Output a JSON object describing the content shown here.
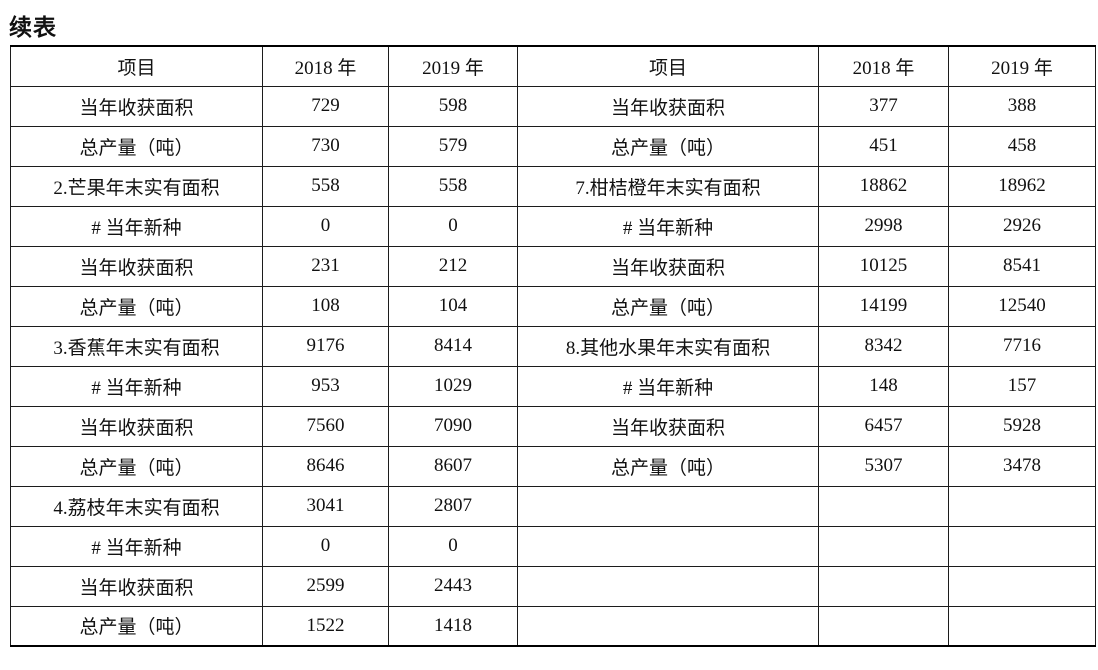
{
  "page": {
    "title": "续表",
    "background": "#ffffff",
    "text_color": "#111111",
    "border_color": "#1c1c1c"
  },
  "table": {
    "headers": {
      "item": "项目",
      "y2018": "2018 年",
      "y2019": "2019 年"
    },
    "left_rows": [
      {
        "label": "当年收获面积",
        "v2018": "729",
        "v2019": "598"
      },
      {
        "label": "总产量（吨）",
        "v2018": "730",
        "v2019": "579"
      },
      {
        "label": "2.芒果年末实有面积",
        "v2018": "558",
        "v2019": "558"
      },
      {
        "label": "# 当年新种",
        "v2018": "0",
        "v2019": "0"
      },
      {
        "label": "当年收获面积",
        "v2018": "231",
        "v2019": "212"
      },
      {
        "label": "总产量（吨）",
        "v2018": "108",
        "v2019": "104"
      },
      {
        "label": "3.香蕉年末实有面积",
        "v2018": "9176",
        "v2019": "8414"
      },
      {
        "label": "# 当年新种",
        "v2018": "953",
        "v2019": "1029"
      },
      {
        "label": "当年收获面积",
        "v2018": "7560",
        "v2019": "7090"
      },
      {
        "label": "总产量（吨）",
        "v2018": "8646",
        "v2019": "8607"
      },
      {
        "label": "4.荔枝年末实有面积",
        "v2018": "3041",
        "v2019": "2807"
      },
      {
        "label": "# 当年新种",
        "v2018": "0",
        "v2019": "0"
      },
      {
        "label": "当年收获面积",
        "v2018": "2599",
        "v2019": "2443"
      },
      {
        "label": "总产量（吨）",
        "v2018": "1522",
        "v2019": "1418"
      }
    ],
    "right_rows": [
      {
        "label": "当年收获面积",
        "v2018": "377",
        "v2019": "388"
      },
      {
        "label": "总产量（吨）",
        "v2018": "451",
        "v2019": "458"
      },
      {
        "label": "7.柑桔橙年末实有面积",
        "v2018": "18862",
        "v2019": "18962"
      },
      {
        "label": "# 当年新种",
        "v2018": "2998",
        "v2019": "2926"
      },
      {
        "label": "当年收获面积",
        "v2018": "10125",
        "v2019": "8541"
      },
      {
        "label": "总产量（吨）",
        "v2018": "14199",
        "v2019": "12540"
      },
      {
        "label": "8.其他水果年末实有面积",
        "v2018": "8342",
        "v2019": "7716"
      },
      {
        "label": "# 当年新种",
        "v2018": "148",
        "v2019": "157"
      },
      {
        "label": "当年收获面积",
        "v2018": "6457",
        "v2019": "5928"
      },
      {
        "label": "总产量（吨）",
        "v2018": "5307",
        "v2019": "3478"
      },
      {
        "label": "",
        "v2018": "",
        "v2019": ""
      },
      {
        "label": "",
        "v2018": "",
        "v2019": ""
      },
      {
        "label": "",
        "v2018": "",
        "v2019": ""
      },
      {
        "label": "",
        "v2018": "",
        "v2019": ""
      }
    ]
  }
}
